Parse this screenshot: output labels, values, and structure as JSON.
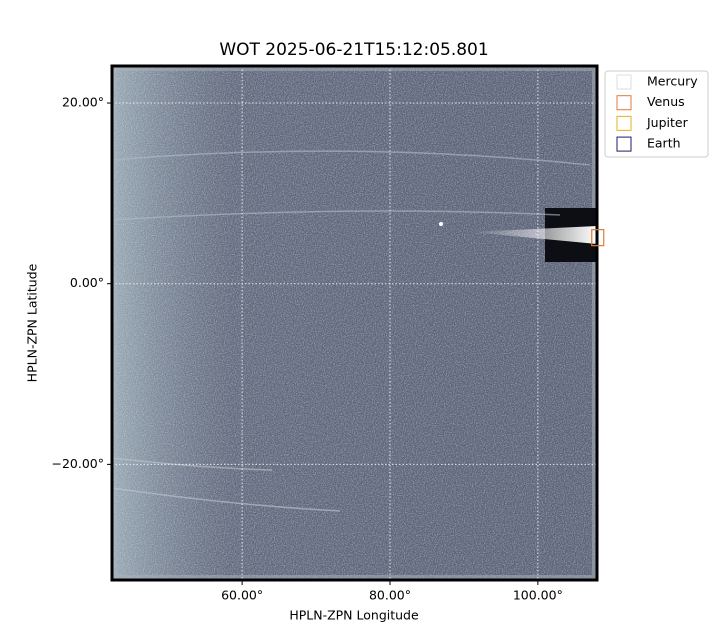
{
  "chart_data": {
    "type": "image",
    "title": "WOT 2025-06-21T15:12:05.801",
    "xlabel": "HPLN-ZPN Longitude",
    "ylabel": "HPLN-ZPN Latitude",
    "xlim": [
      42.4,
      108.0
    ],
    "ylim": [
      -32.8,
      24.1
    ],
    "xticks": [
      {
        "value": 60,
        "label": "60.00°"
      },
      {
        "value": 80,
        "label": "80.00°"
      },
      {
        "value": 100,
        "label": "100.00°"
      }
    ],
    "yticks": [
      {
        "value": -20,
        "label": "−20.00°"
      },
      {
        "value": 0,
        "label": "0.00°"
      },
      {
        "value": 20,
        "label": "20.00°"
      }
    ],
    "grid": true,
    "legend": "upper right outside",
    "series": [
      {
        "name": "Mercury",
        "color": "#dddddd"
      },
      {
        "name": "Venus",
        "color": "#e07b39",
        "x": [
          108.1
        ],
        "y": [
          5.1
        ]
      },
      {
        "name": "Jupiter",
        "color": "#e0b020"
      },
      {
        "name": "Earth",
        "color": "#1a1a6e"
      }
    ]
  }
}
